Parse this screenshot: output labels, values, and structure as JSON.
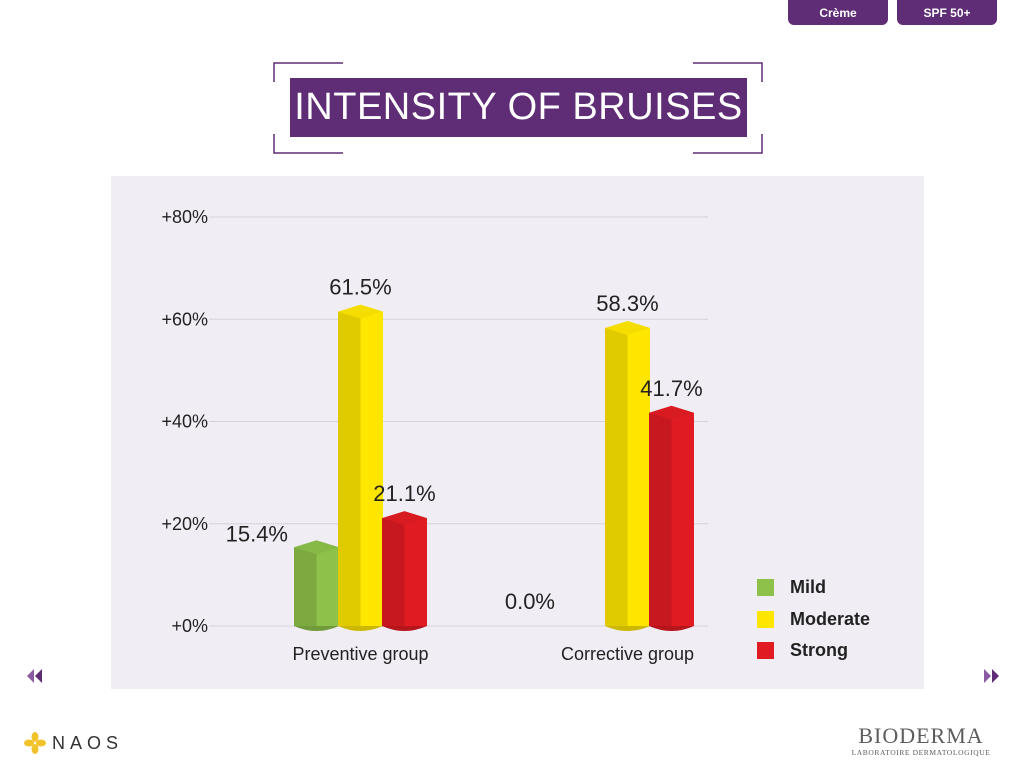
{
  "tabs": [
    {
      "label": "Crème"
    },
    {
      "label": "SPF 50+"
    }
  ],
  "colors": {
    "brand_purple": "#5f2c76",
    "panel_bg": "#f1edf4",
    "mild": "#8dc149",
    "moderate": "#ffe600",
    "strong": "#e11b22"
  },
  "chart_data": {
    "type": "bar",
    "title": "INTENSITY OF BRUISES",
    "categories": [
      "Preventive group",
      "Corrective group"
    ],
    "series": [
      {
        "name": "Mild",
        "color": "#8dc149",
        "values": [
          15.4,
          0.0
        ],
        "labels": [
          "15.4%",
          "0.0%"
        ]
      },
      {
        "name": "Moderate",
        "color": "#ffe600",
        "values": [
          61.5,
          58.3
        ],
        "labels": [
          "61.5%",
          "58.3%"
        ]
      },
      {
        "name": "Strong",
        "color": "#e11b22",
        "values": [
          21.1,
          41.7
        ],
        "labels": [
          "21.1%",
          "41.7%"
        ]
      }
    ],
    "yticks": [
      0,
      20,
      40,
      60,
      80
    ],
    "ytick_labels": [
      "+0%",
      "+20%",
      "+40%",
      "+60%",
      "+80%"
    ],
    "ylim": [
      0,
      80
    ],
    "grid": true,
    "legend": "bottom-right"
  },
  "nav": {
    "prev_icon": "double-chevron-left-icon",
    "next_icon": "double-chevron-right-icon"
  },
  "logos": {
    "naos": "NAOS",
    "bioderma": "BIODERMA",
    "bioderma_sub": "LABORATOIRE DERMATOLOGIQUE"
  }
}
